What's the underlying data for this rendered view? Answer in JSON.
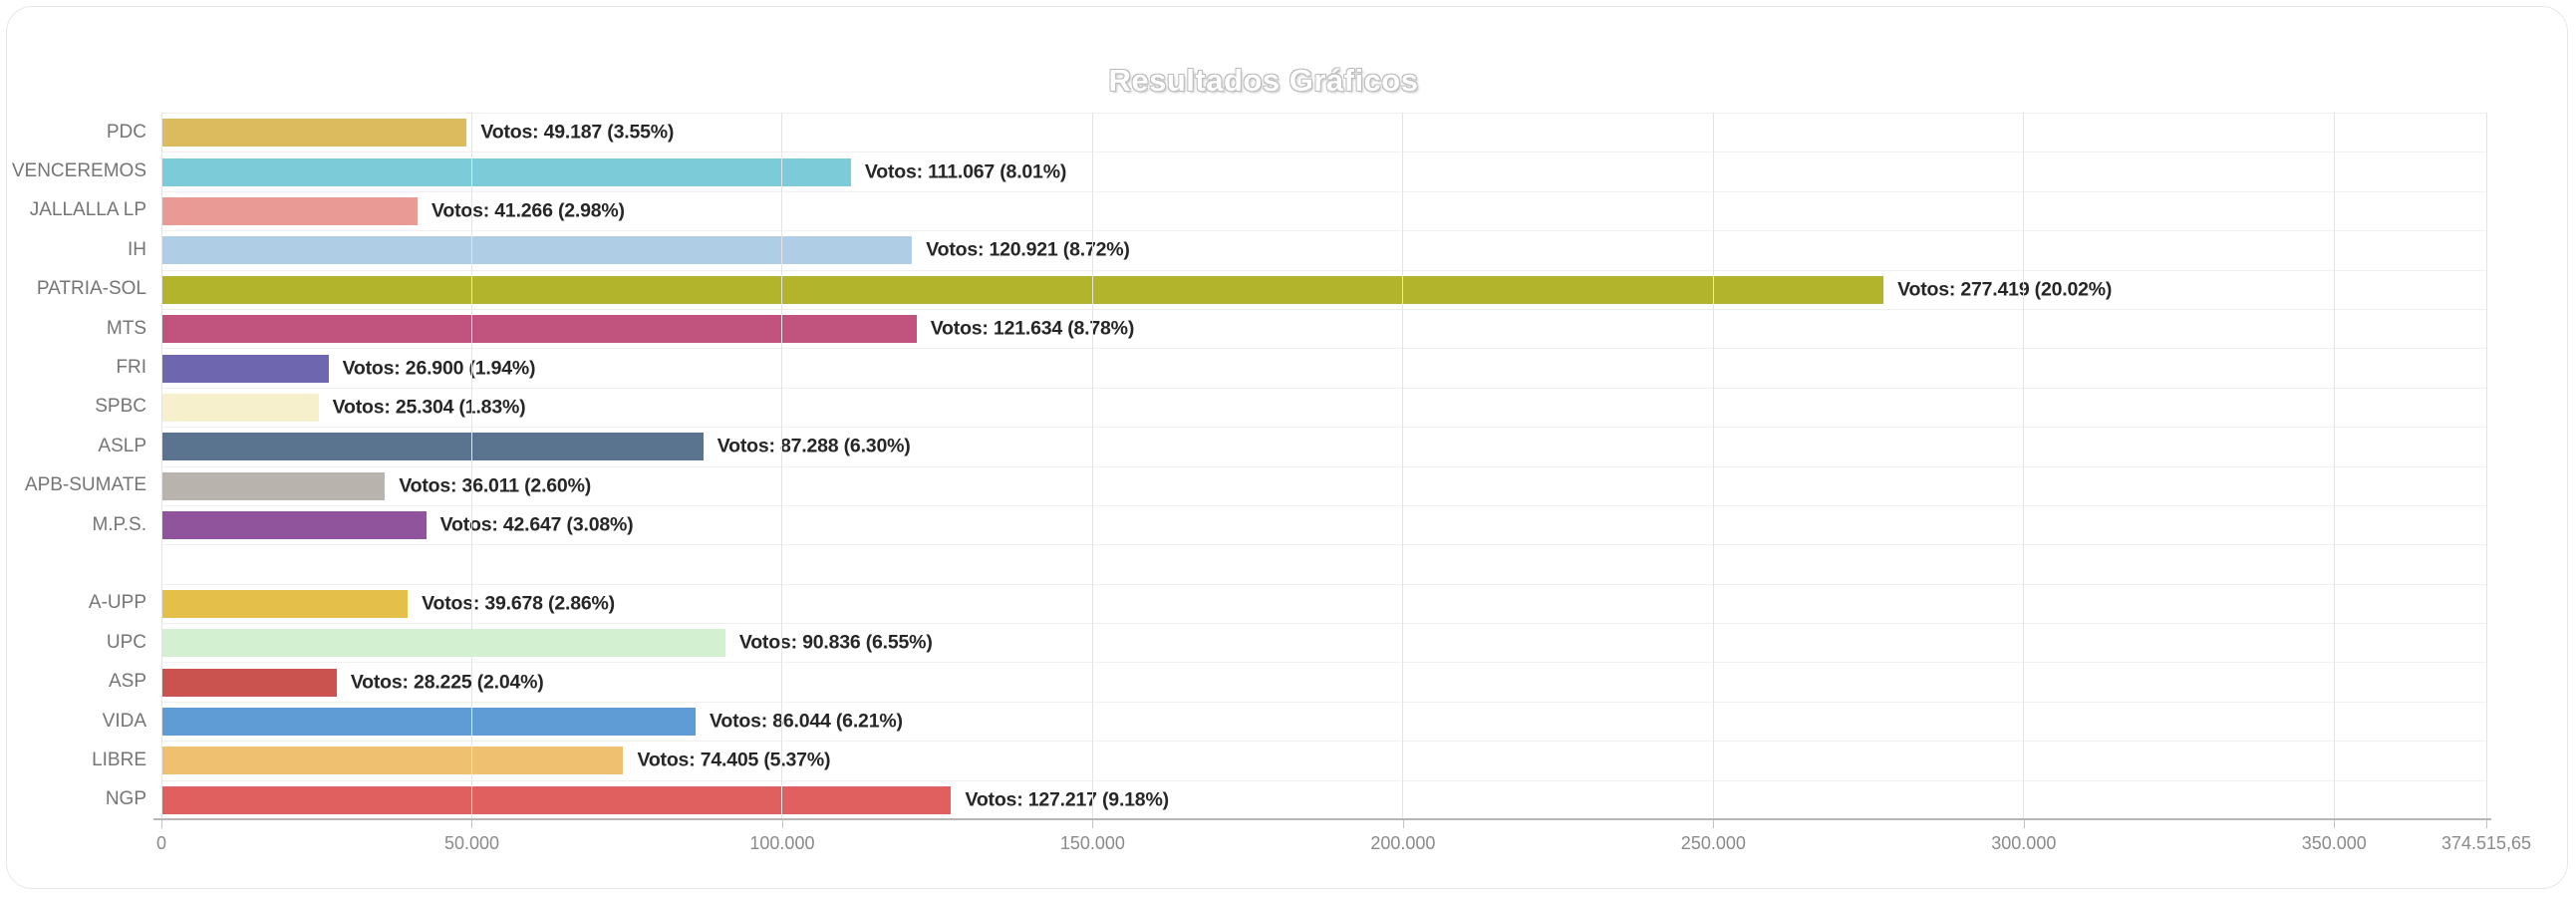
{
  "title": "Resultados Gráficos",
  "chart_data": {
    "type": "bar",
    "orientation": "horizontal",
    "title": "Resultados Gráficos",
    "grid": true,
    "x_axis": {
      "min": 0,
      "max": 374515.65,
      "tick_values": [
        0,
        50000,
        100000,
        150000,
        200000,
        250000,
        300000,
        350000,
        374515.65
      ],
      "tick_labels": [
        "0",
        "50.000",
        "100.000",
        "150.000",
        "200.000",
        "250.000",
        "300.000",
        "350.000",
        "374.515,65"
      ]
    },
    "value_label_prefix": "Votos:",
    "bars": [
      {
        "party": "PDC",
        "votes": 49187,
        "pct": 3.55,
        "label": "Votos: 49.187 (3.55%)",
        "color": "#dcba5e"
      },
      {
        "party": "VENCEREMOS",
        "votes": 111067,
        "pct": 8.01,
        "label": "Votos: 111.067 (8.01%)",
        "color": "#7ccbd9"
      },
      {
        "party": "JALLALLA LP",
        "votes": 41266,
        "pct": 2.98,
        "label": "Votos: 41.266 (2.98%)",
        "color": "#e99a94"
      },
      {
        "party": "IH",
        "votes": 120921,
        "pct": 8.72,
        "label": "Votos: 120.921 (8.72%)",
        "color": "#afcee5"
      },
      {
        "party": "PATRIA-SOL",
        "votes": 277419,
        "pct": 20.02,
        "label": "Votos: 277.419 (20.02%)",
        "color": "#b2b52c"
      },
      {
        "party": "MTS",
        "votes": 121634,
        "pct": 8.78,
        "label": "Votos: 121.634 (8.78%)",
        "color": "#c1537f"
      },
      {
        "party": "FRI",
        "votes": 26900,
        "pct": 1.94,
        "label": "Votos: 26.900 (1.94%)",
        "color": "#6e67b0"
      },
      {
        "party": "SPBC",
        "votes": 25304,
        "pct": 1.83,
        "label": "Votos: 25.304 (1.83%)",
        "color": "#f7f0cc"
      },
      {
        "party": "ASLP",
        "votes": 87288,
        "pct": 6.3,
        "label": "Votos: 87.288 (6.30%)",
        "color": "#5a7490"
      },
      {
        "party": "APB-SUMATE",
        "votes": 36011,
        "pct": 2.6,
        "label": "Votos: 36.011 (2.60%)",
        "color": "#b9b3ad"
      },
      {
        "party": "M.P.S.",
        "votes": 42647,
        "pct": 3.08,
        "label": "Votos: 42.647 (3.08%)",
        "color": "#8f549b"
      },
      {
        "party": "",
        "votes": null,
        "pct": null,
        "label": "",
        "color": null
      },
      {
        "party": "A-UPP",
        "votes": 39678,
        "pct": 2.86,
        "label": "Votos: 39.678 (2.86%)",
        "color": "#e4c04a"
      },
      {
        "party": "UPC",
        "votes": 90836,
        "pct": 6.55,
        "label": "Votos: 90.836 (6.55%)",
        "color": "#d3f0d1"
      },
      {
        "party": "ASP",
        "votes": 28225,
        "pct": 2.04,
        "label": "Votos: 28.225 (2.04%)",
        "color": "#ca534f"
      },
      {
        "party": "VIDA",
        "votes": 86044,
        "pct": 6.21,
        "label": "Votos: 86.044 (6.21%)",
        "color": "#5f9cd6"
      },
      {
        "party": "LIBRE",
        "votes": 74405,
        "pct": 5.37,
        "label": "Votos: 74.405 (5.37%)",
        "color": "#efc06f"
      },
      {
        "party": "NGP",
        "votes": 127217,
        "pct": 9.18,
        "label": "Votos: 127.217 (9.18%)",
        "color": "#e06060"
      }
    ]
  }
}
